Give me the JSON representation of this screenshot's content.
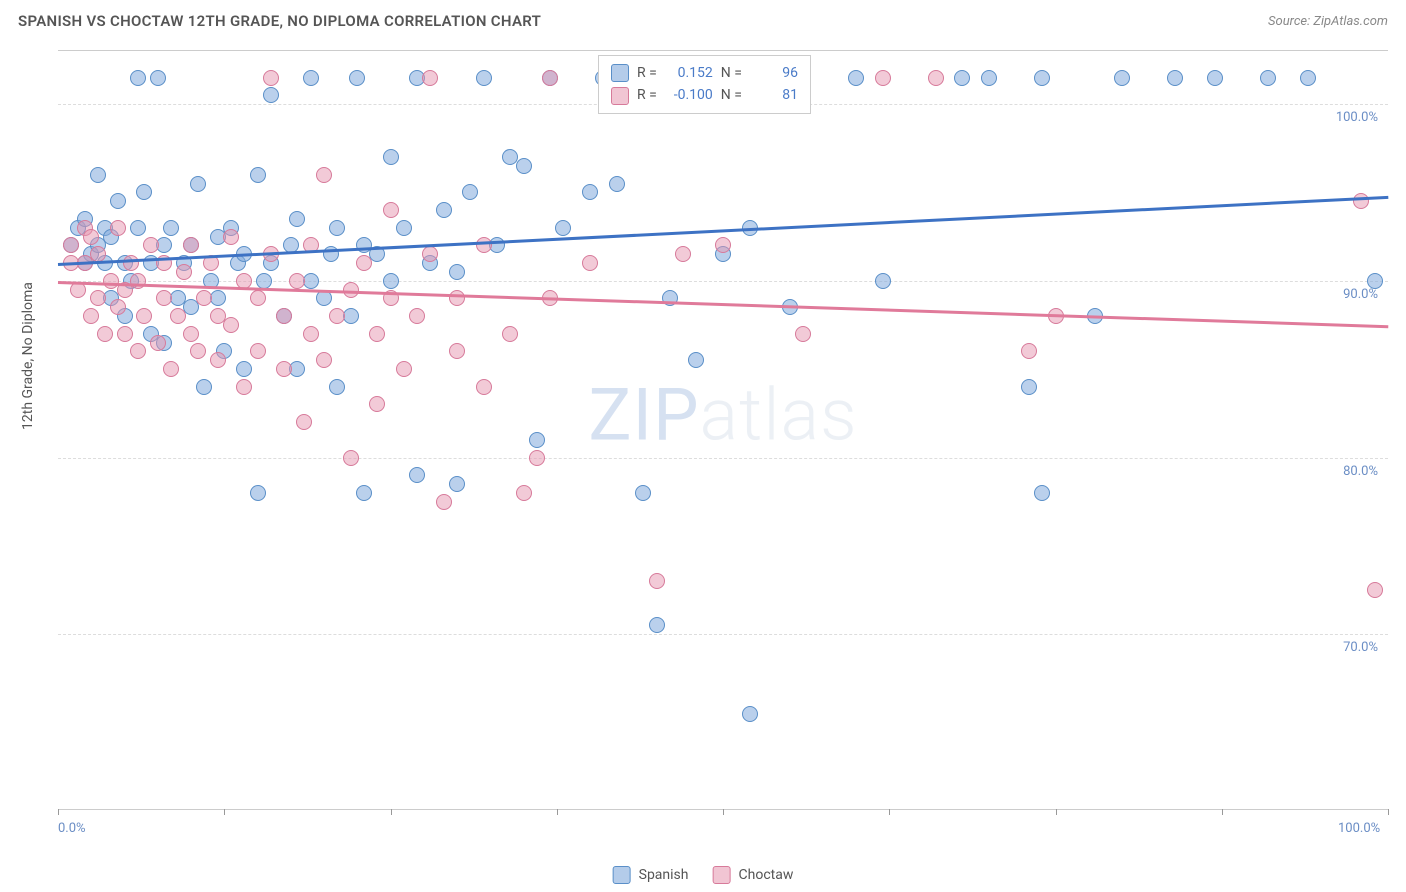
{
  "header": {
    "title": "SPANISH VS CHOCTAW 12TH GRADE, NO DIPLOMA CORRELATION CHART",
    "source": "Source: ZipAtlas.com"
  },
  "watermark": {
    "zip": "ZIP",
    "atlas": "atlas"
  },
  "chart": {
    "type": "scatter",
    "y_title": "12th Grade, No Diploma",
    "xlim": [
      0,
      100
    ],
    "ylim": [
      60,
      103
    ],
    "x_ticks": [
      0,
      12.5,
      25,
      37.5,
      50,
      62.5,
      75,
      87.5,
      100
    ],
    "x_tick_labels": {
      "0": "0.0%",
      "100": "100.0%"
    },
    "y_gridlines": [
      70,
      80,
      90,
      100
    ],
    "y_labels": [
      "70.0%",
      "80.0%",
      "90.0%",
      "100.0%"
    ],
    "background_color": "#ffffff",
    "grid_color": "#dddddd",
    "axis_label_color": "#6b8ec5",
    "marker_radius": 8,
    "series": [
      {
        "name": "Spanish",
        "color_fill": "rgba(130,170,220,0.55)",
        "color_stroke": "#5a8fc8",
        "trend_color": "#3d72c4",
        "R": "0.152",
        "N": "96",
        "trend": {
          "x0": 0,
          "y0": 91.0,
          "x1": 100,
          "y1": 94.8
        },
        "points": [
          [
            1,
            92
          ],
          [
            1.5,
            93
          ],
          [
            2,
            91
          ],
          [
            2,
            93.5
          ],
          [
            2.5,
            91.5
          ],
          [
            3,
            92
          ],
          [
            3,
            96
          ],
          [
            3.5,
            91
          ],
          [
            3.5,
            93
          ],
          [
            4,
            89
          ],
          [
            4,
            92.5
          ],
          [
            4.5,
            94.5
          ],
          [
            5,
            88
          ],
          [
            5,
            91
          ],
          [
            5.5,
            90
          ],
          [
            6,
            101.5
          ],
          [
            6,
            93
          ],
          [
            6.5,
            95
          ],
          [
            7,
            87
          ],
          [
            7,
            91
          ],
          [
            7.5,
            101.5
          ],
          [
            8,
            86.5
          ],
          [
            8,
            92
          ],
          [
            8.5,
            93
          ],
          [
            9,
            89
          ],
          [
            9.5,
            91
          ],
          [
            10,
            88.5
          ],
          [
            10,
            92
          ],
          [
            10.5,
            95.5
          ],
          [
            11,
            84
          ],
          [
            11.5,
            90
          ],
          [
            12,
            89
          ],
          [
            12,
            92.5
          ],
          [
            12.5,
            86
          ],
          [
            13,
            93
          ],
          [
            13.5,
            91
          ],
          [
            14,
            85
          ],
          [
            14,
            91.5
          ],
          [
            15,
            78
          ],
          [
            15,
            96
          ],
          [
            15.5,
            90
          ],
          [
            16,
            91
          ],
          [
            16,
            100.5
          ],
          [
            17,
            88
          ],
          [
            17.5,
            92
          ],
          [
            18,
            93.5
          ],
          [
            18,
            85
          ],
          [
            19,
            90
          ],
          [
            19,
            101.5
          ],
          [
            20,
            89
          ],
          [
            20.5,
            91.5
          ],
          [
            21,
            84
          ],
          [
            21,
            93
          ],
          [
            22,
            88
          ],
          [
            22.5,
            101.5
          ],
          [
            23,
            92
          ],
          [
            23,
            78
          ],
          [
            24,
            91.5
          ],
          [
            25,
            90
          ],
          [
            25,
            97
          ],
          [
            26,
            93
          ],
          [
            27,
            101.5
          ],
          [
            27,
            79
          ],
          [
            28,
            91
          ],
          [
            29,
            94
          ],
          [
            30,
            78.5
          ],
          [
            30,
            90.5
          ],
          [
            31,
            95
          ],
          [
            32,
            101.5
          ],
          [
            33,
            92
          ],
          [
            34,
            97
          ],
          [
            35,
            96.5
          ],
          [
            36,
            81
          ],
          [
            37,
            101.5
          ],
          [
            38,
            93
          ],
          [
            40,
            95
          ],
          [
            41,
            101.5
          ],
          [
            42,
            95.5
          ],
          [
            44,
            78
          ],
          [
            45,
            70.5
          ],
          [
            46,
            89
          ],
          [
            48,
            85.5
          ],
          [
            50,
            91.5
          ],
          [
            50,
            101.5
          ],
          [
            52,
            93
          ],
          [
            52,
            65.5
          ],
          [
            55,
            88.5
          ],
          [
            56,
            101.5
          ],
          [
            60,
            101.5
          ],
          [
            62,
            90
          ],
          [
            68,
            101.5
          ],
          [
            70,
            101.5
          ],
          [
            73,
            84
          ],
          [
            74,
            78
          ],
          [
            74,
            101.5
          ],
          [
            78,
            88
          ],
          [
            80,
            101.5
          ],
          [
            84,
            101.5
          ],
          [
            87,
            101.5
          ],
          [
            91,
            101.5
          ],
          [
            94,
            101.5
          ],
          [
            99,
            90
          ]
        ]
      },
      {
        "name": "Choctaw",
        "color_fill": "rgba(230,150,175,0.5)",
        "color_stroke": "#d77a9a",
        "trend_color": "#e07a9a",
        "R": "-0.100",
        "N": "81",
        "trend": {
          "x0": 0,
          "y0": 90.0,
          "x1": 100,
          "y1": 87.5
        },
        "points": [
          [
            1,
            91
          ],
          [
            1,
            92
          ],
          [
            1.5,
            89.5
          ],
          [
            2,
            91
          ],
          [
            2,
            93
          ],
          [
            2.5,
            88
          ],
          [
            2.5,
            92.5
          ],
          [
            3,
            89
          ],
          [
            3,
            91.5
          ],
          [
            3.5,
            87
          ],
          [
            4,
            90
          ],
          [
            4.5,
            88.5
          ],
          [
            4.5,
            93
          ],
          [
            5,
            87
          ],
          [
            5,
            89.5
          ],
          [
            5.5,
            91
          ],
          [
            6,
            86
          ],
          [
            6,
            90
          ],
          [
            6.5,
            88
          ],
          [
            7,
            92
          ],
          [
            7.5,
            86.5
          ],
          [
            8,
            89
          ],
          [
            8,
            91
          ],
          [
            8.5,
            85
          ],
          [
            9,
            88
          ],
          [
            9.5,
            90.5
          ],
          [
            10,
            87
          ],
          [
            10,
            92
          ],
          [
            10.5,
            86
          ],
          [
            11,
            89
          ],
          [
            11.5,
            91
          ],
          [
            12,
            85.5
          ],
          [
            12,
            88
          ],
          [
            13,
            87.5
          ],
          [
            13,
            92.5
          ],
          [
            14,
            84
          ],
          [
            14,
            90
          ],
          [
            15,
            86
          ],
          [
            15,
            89
          ],
          [
            16,
            91.5
          ],
          [
            16,
            101.5
          ],
          [
            17,
            85
          ],
          [
            17,
            88
          ],
          [
            18,
            90
          ],
          [
            18.5,
            82
          ],
          [
            19,
            87
          ],
          [
            19,
            92
          ],
          [
            20,
            85.5
          ],
          [
            20,
            96
          ],
          [
            21,
            88
          ],
          [
            22,
            89.5
          ],
          [
            22,
            80
          ],
          [
            23,
            91
          ],
          [
            24,
            83
          ],
          [
            24,
            87
          ],
          [
            25,
            89
          ],
          [
            25,
            94
          ],
          [
            26,
            85
          ],
          [
            27,
            88
          ],
          [
            28,
            91.5
          ],
          [
            28,
            101.5
          ],
          [
            29,
            77.5
          ],
          [
            30,
            86
          ],
          [
            30,
            89
          ],
          [
            32,
            84
          ],
          [
            32,
            92
          ],
          [
            34,
            87
          ],
          [
            35,
            78
          ],
          [
            36,
            80
          ],
          [
            37,
            89
          ],
          [
            37,
            101.5
          ],
          [
            40,
            91
          ],
          [
            43,
            101.5
          ],
          [
            45,
            73
          ],
          [
            47,
            91.5
          ],
          [
            50,
            92
          ],
          [
            56,
            87
          ],
          [
            62,
            101.5
          ],
          [
            66,
            101.5
          ],
          [
            73,
            86
          ],
          [
            75,
            88
          ],
          [
            98,
            94.5
          ],
          [
            99,
            72.5
          ]
        ]
      }
    ]
  },
  "legend": {
    "r_label": "R =",
    "n_label": "N ="
  },
  "bottom_legend": {
    "items": [
      "Spanish",
      "Choctaw"
    ]
  }
}
